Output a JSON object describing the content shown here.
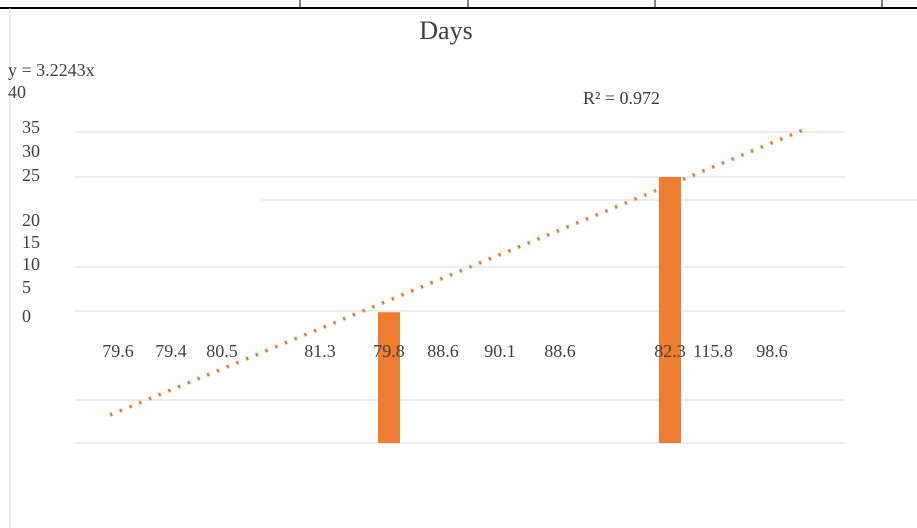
{
  "chart_data": {
    "type": "bar",
    "title": "Days",
    "annotations": [
      "y = 3.2243x",
      "R² = 0.972"
    ],
    "categories": [
      "79.6",
      "79.4",
      "80.5",
      "81.3",
      "79.8",
      "88.6",
      "90.1",
      "88.6",
      "82.3",
      "115.8",
      "98.6"
    ],
    "values": [
      null,
      null,
      null,
      null,
      1,
      null,
      null,
      null,
      25,
      null,
      null
    ],
    "color": "#ed7d31",
    "ylim": [
      0,
      40
    ],
    "yticks": [
      0,
      5,
      10,
      15,
      20,
      25,
      30,
      35,
      40
    ]
  }
}
